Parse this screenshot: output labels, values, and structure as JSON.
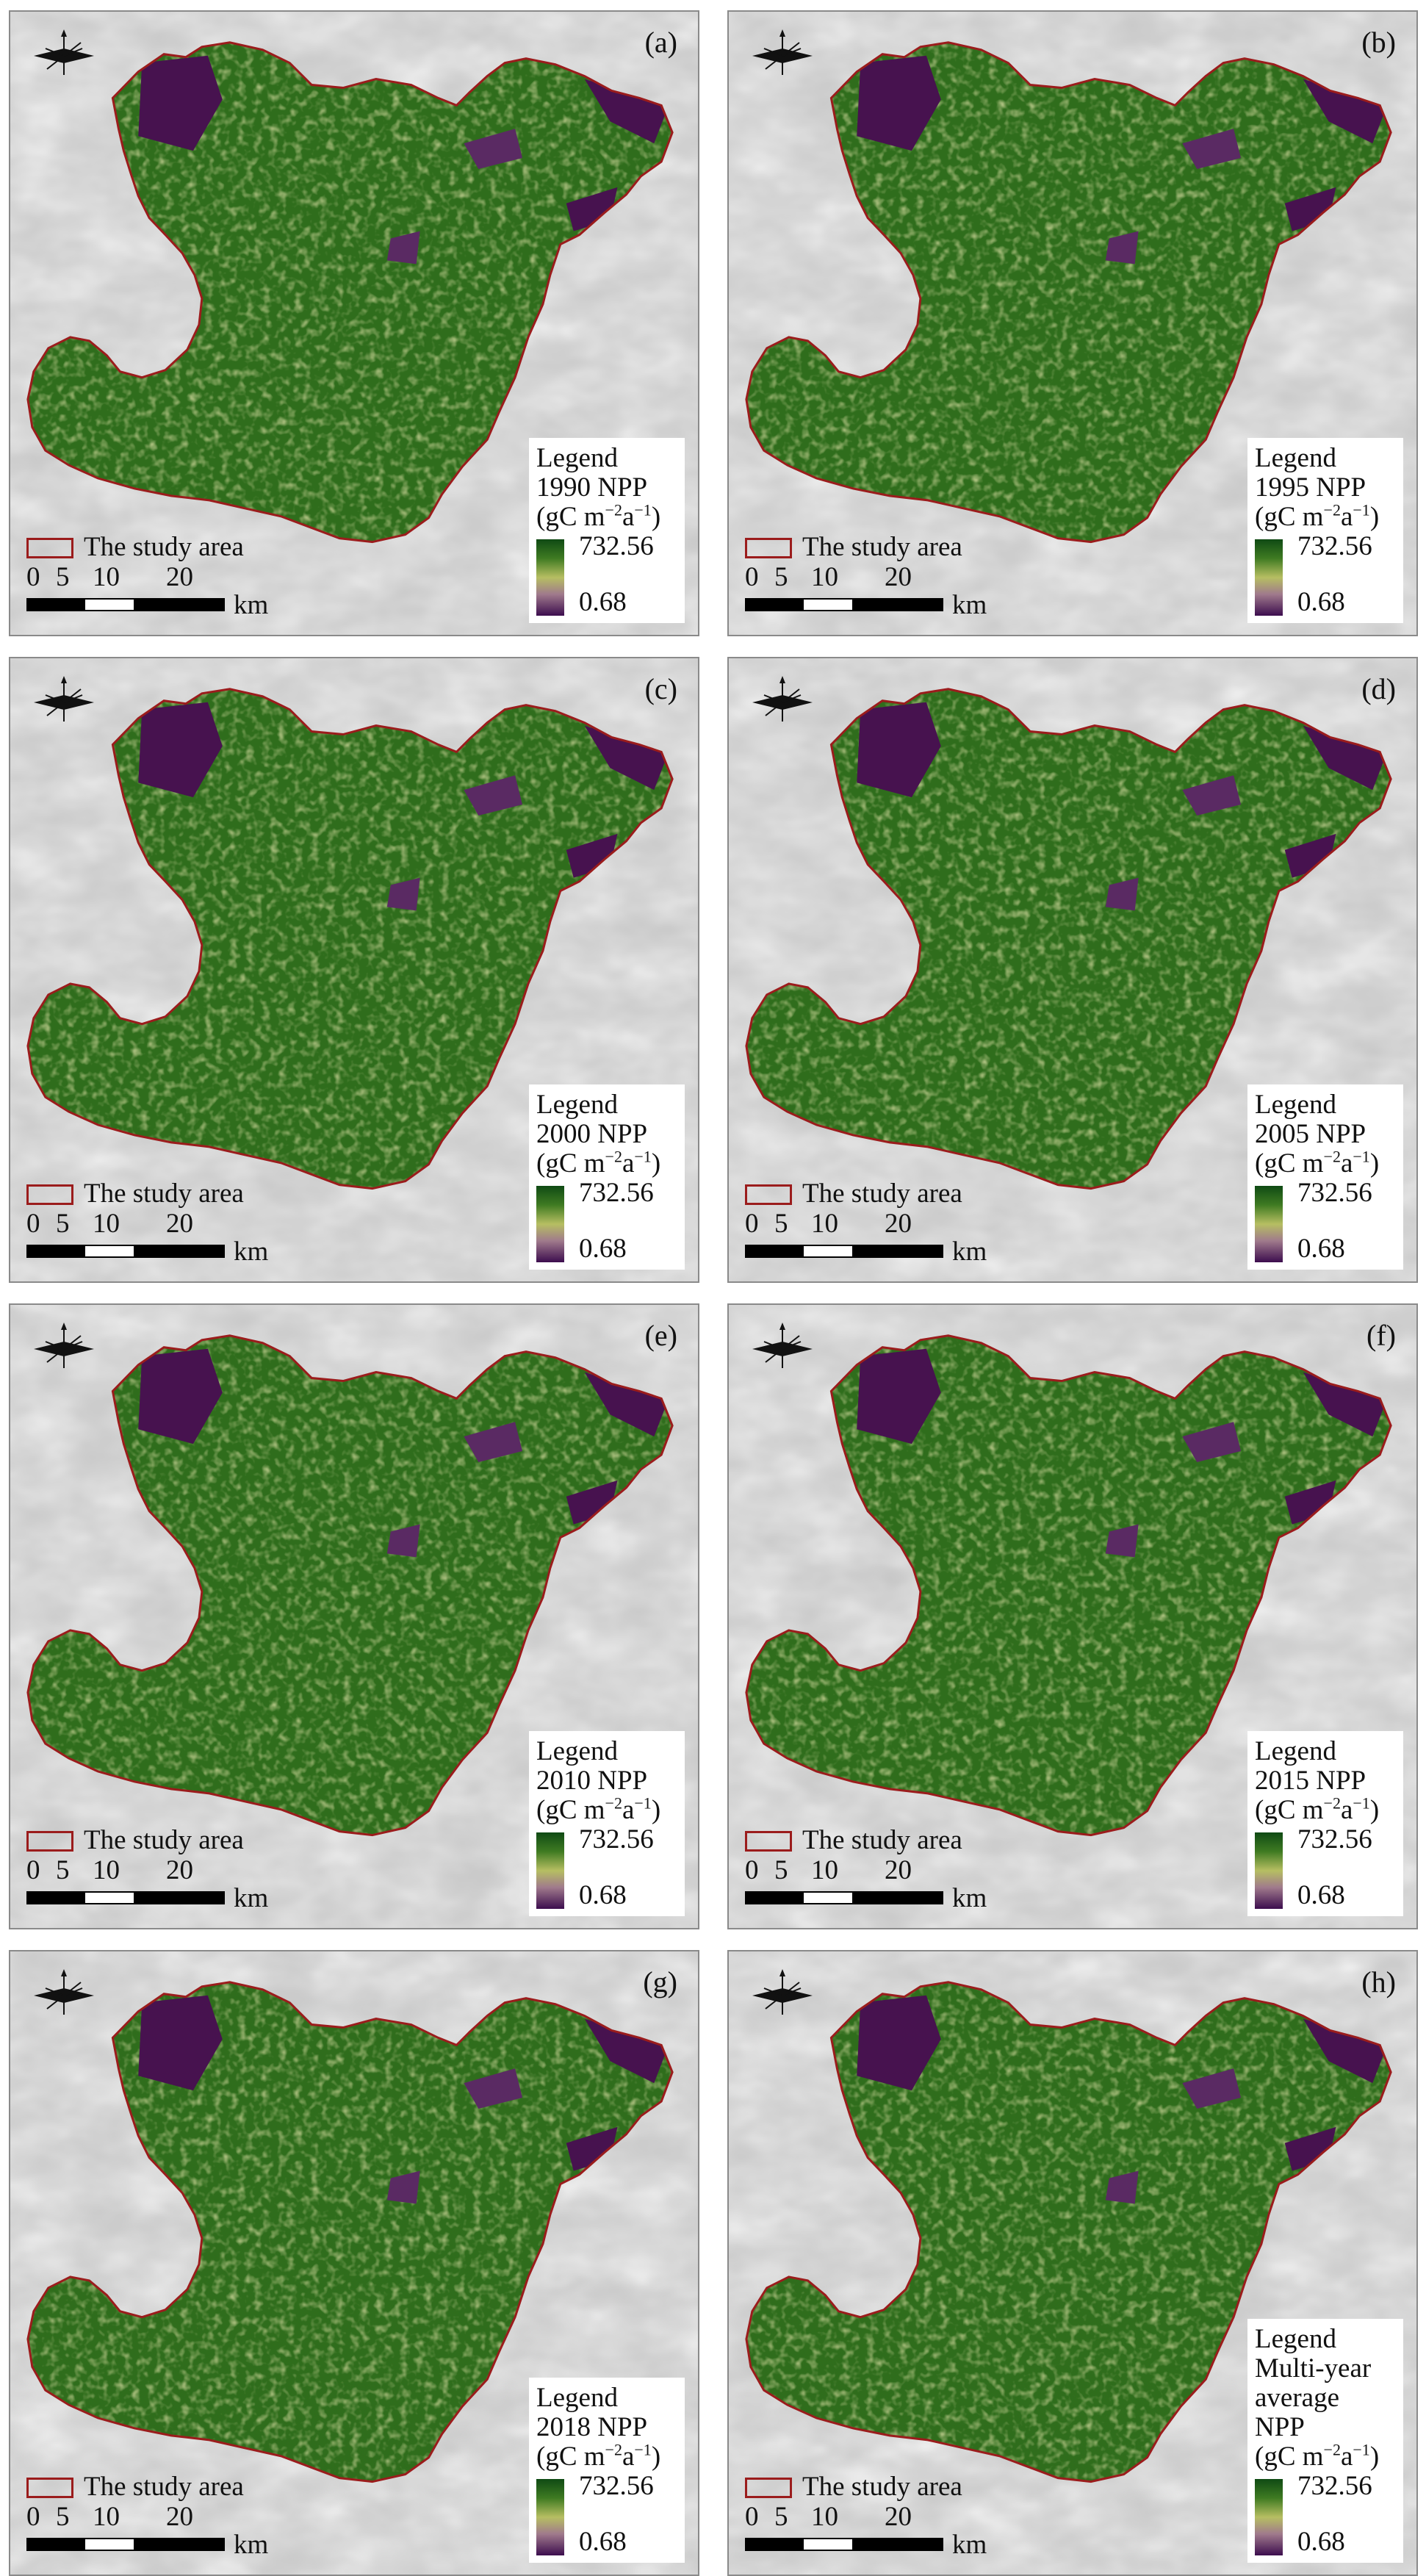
{
  "colors": {
    "boundary": "#9b1c1c",
    "ramp_high": "#0f4a14",
    "ramp_mid": "#b6be62",
    "ramp_low": "#3c0d4e",
    "basemap": "#c8c8c8"
  },
  "common": {
    "legend_title": "Legend",
    "unit_prefix": "(gC m",
    "unit_sup1": "−2",
    "unit_mid": "a",
    "unit_sup2": "−1",
    "unit_suffix": ")",
    "ramp_max": "732.56",
    "ramp_min": "0.68",
    "study_area_label": "The study area",
    "scale_ticks": [
      "0",
      "5",
      "10",
      "20"
    ],
    "scale_unit": "km",
    "north_arrow_icon": "north-arrow-icon"
  },
  "panels": [
    {
      "label": "(a)",
      "title_lines": [
        "1990 NPP"
      ]
    },
    {
      "label": "(b)",
      "title_lines": [
        "1995 NPP"
      ]
    },
    {
      "label": "(c)",
      "title_lines": [
        "2000 NPP"
      ]
    },
    {
      "label": "(d)",
      "title_lines": [
        "2005 NPP"
      ]
    },
    {
      "label": "(e)",
      "title_lines": [
        "2010 NPP"
      ]
    },
    {
      "label": "(f)",
      "title_lines": [
        "2015 NPP"
      ]
    },
    {
      "label": "(g)",
      "title_lines": [
        "2018 NPP"
      ]
    },
    {
      "label": "(h)",
      "title_lines": [
        "Multi-year",
        "average NPP"
      ]
    }
  ]
}
